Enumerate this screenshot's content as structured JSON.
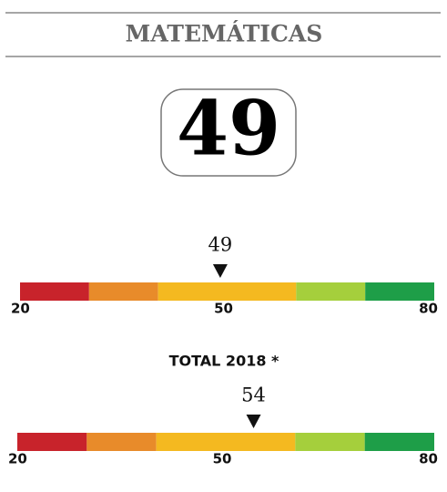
{
  "header": {
    "title": "MATEMÁTICAS"
  },
  "score": 49,
  "scales": [
    {
      "value": 49,
      "min": 20,
      "max": 80,
      "ticks": [
        20,
        50,
        80
      ],
      "bands": [
        {
          "from": 20,
          "to": 30,
          "color": "#c8232b"
        },
        {
          "from": 30,
          "to": 40,
          "color": "#e88b2a"
        },
        {
          "from": 40,
          "to": 60,
          "color": "#f4b920"
        },
        {
          "from": 60,
          "to": 70,
          "color": "#a5cf3c"
        },
        {
          "from": 70,
          "to": 80,
          "color": "#1e9e48"
        }
      ]
    },
    {
      "label": "TOTAL 2018 *",
      "value": 54,
      "min": 20,
      "max": 80,
      "ticks": [
        20,
        50,
        80
      ],
      "bands": [
        {
          "from": 20,
          "to": 30,
          "color": "#c8232b"
        },
        {
          "from": 30,
          "to": 40,
          "color": "#e88b2a"
        },
        {
          "from": 40,
          "to": 60,
          "color": "#f4b920"
        },
        {
          "from": 60,
          "to": 70,
          "color": "#a5cf3c"
        },
        {
          "from": 70,
          "to": 80,
          "color": "#1e9e48"
        }
      ]
    }
  ]
}
